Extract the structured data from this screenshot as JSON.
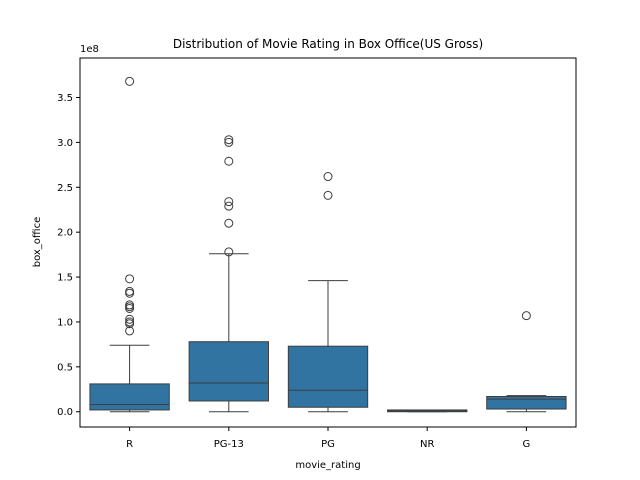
{
  "chart_data": {
    "type": "box",
    "title": "Distribution of Movie Rating in Box Office(US Gross)",
    "xlabel": "movie_rating",
    "ylabel": "box_office",
    "y_multiplier": "1e8",
    "ylim": [
      -0.17,
      3.94
    ],
    "yticks": [
      0.0,
      0.5,
      1.0,
      1.5,
      2.0,
      2.5,
      3.0,
      3.5
    ],
    "ytick_labels": [
      "0.0",
      "0.5",
      "1.0",
      "1.5",
      "2.0",
      "2.5",
      "3.0",
      "3.5"
    ],
    "categories": [
      "R",
      "PG-13",
      "PG",
      "NR",
      "G"
    ],
    "box_color": "#3274a1",
    "grid": false,
    "legend": "none",
    "boxes": [
      {
        "category": "R",
        "whisker_low": 0.0,
        "q1": 0.02,
        "median": 0.08,
        "q3": 0.31,
        "whisker_high": 0.74,
        "outliers": [
          3.68,
          1.48,
          1.34,
          1.32,
          1.19,
          1.17,
          1.15,
          1.03,
          1.0,
          0.98,
          0.9
        ]
      },
      {
        "category": "PG-13",
        "whisker_low": 0.0,
        "q1": 0.12,
        "median": 0.32,
        "q3": 0.78,
        "whisker_high": 1.76,
        "outliers": [
          3.03,
          3.0,
          2.79,
          2.34,
          2.29,
          2.1,
          1.78
        ]
      },
      {
        "category": "PG",
        "whisker_low": 0.0,
        "q1": 0.05,
        "median": 0.24,
        "q3": 0.73,
        "whisker_high": 1.46,
        "outliers": [
          2.62,
          2.41
        ]
      },
      {
        "category": "NR",
        "whisker_low": 0.0,
        "q1": 0.0,
        "median": 0.01,
        "q3": 0.02,
        "whisker_high": 0.02,
        "outliers": []
      },
      {
        "category": "G",
        "whisker_low": 0.0,
        "q1": 0.03,
        "median": 0.14,
        "q3": 0.17,
        "whisker_high": 0.18,
        "outliers": [
          1.07
        ]
      }
    ]
  }
}
